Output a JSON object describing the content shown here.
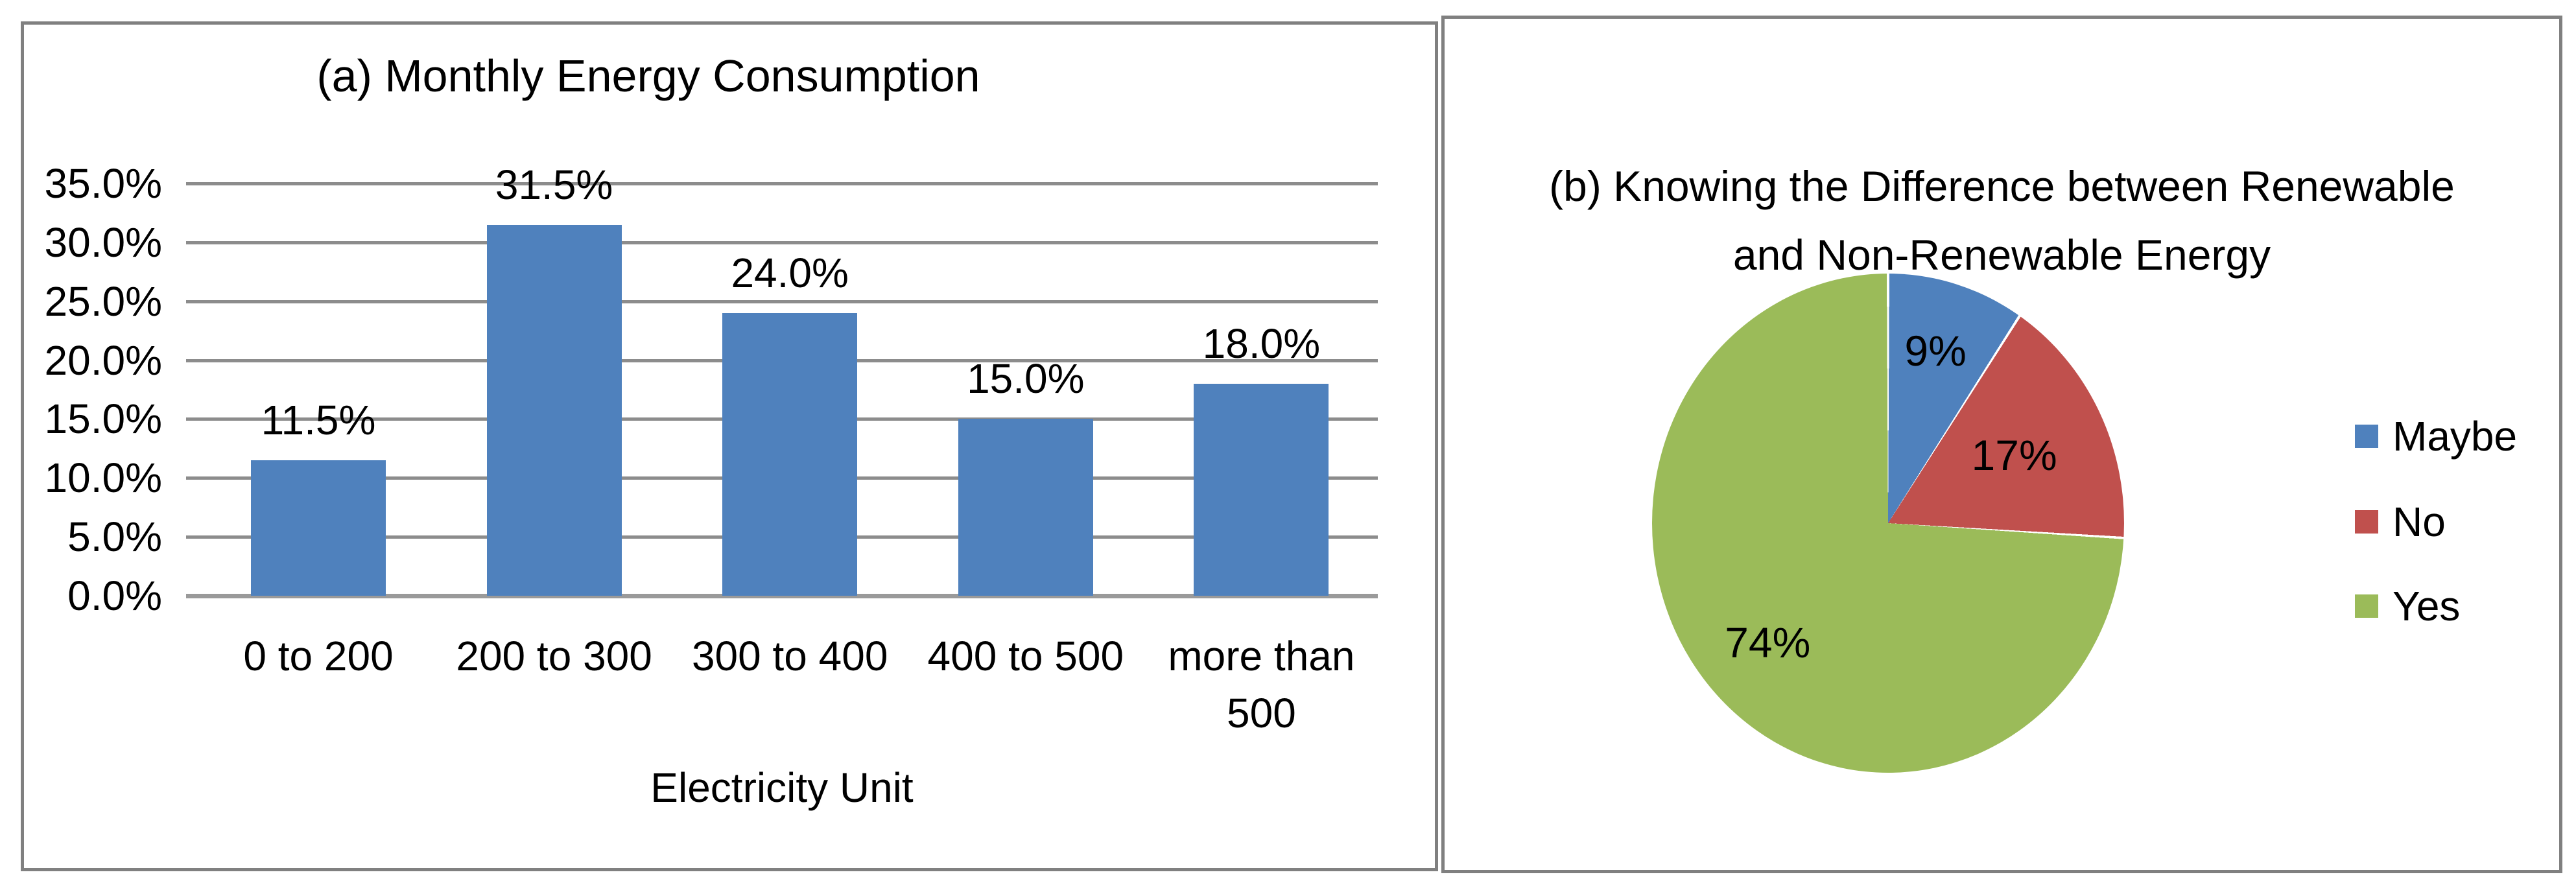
{
  "figure": {
    "background": "#ffffff",
    "panel_border_color": "#808080",
    "text_color": "#000000",
    "gridline_color": "#8C8C8C",
    "axis_line_color": "#9A9A9A"
  },
  "chart_data": [
    {
      "type": "bar",
      "title": "(a) Monthly Energy Consumption",
      "xlabel": "Electricity Unit",
      "ylabel": "",
      "categories": [
        "0 to 200",
        "200 to 300",
        "300 to 400",
        "400 to 500",
        "more than 500"
      ],
      "values": [
        11.5,
        31.5,
        24.0,
        15.0,
        18.0
      ],
      "data_labels": [
        "11.5%",
        "31.5%",
        "24.0%",
        "15.0%",
        "18.0%"
      ],
      "ylim": [
        0,
        35
      ],
      "ytick_step": 5,
      "ytick_labels": [
        "0.0%",
        "5.0%",
        "10.0%",
        "15.0%",
        "20.0%",
        "25.0%",
        "30.0%",
        "35.0%"
      ],
      "grid": true,
      "legend": "none",
      "bar_color": "#4F81BD"
    },
    {
      "type": "pie",
      "title": "(b) Knowing the Difference between Renewable and Non-Renewable Energy",
      "title_lines": [
        "(b) Knowing the Difference between Renewable",
        "and Non-Renewable Energy"
      ],
      "labels": [
        "Maybe",
        "No",
        "Yes"
      ],
      "values": [
        9,
        17,
        74
      ],
      "slice_labels": [
        "9%",
        "17%",
        "74%"
      ],
      "colors": [
        "#4F81BD",
        "#C0504D",
        "#9BBB59"
      ],
      "start_angle_deg": 0,
      "direction": "clockwise",
      "legend_position": "right"
    }
  ]
}
